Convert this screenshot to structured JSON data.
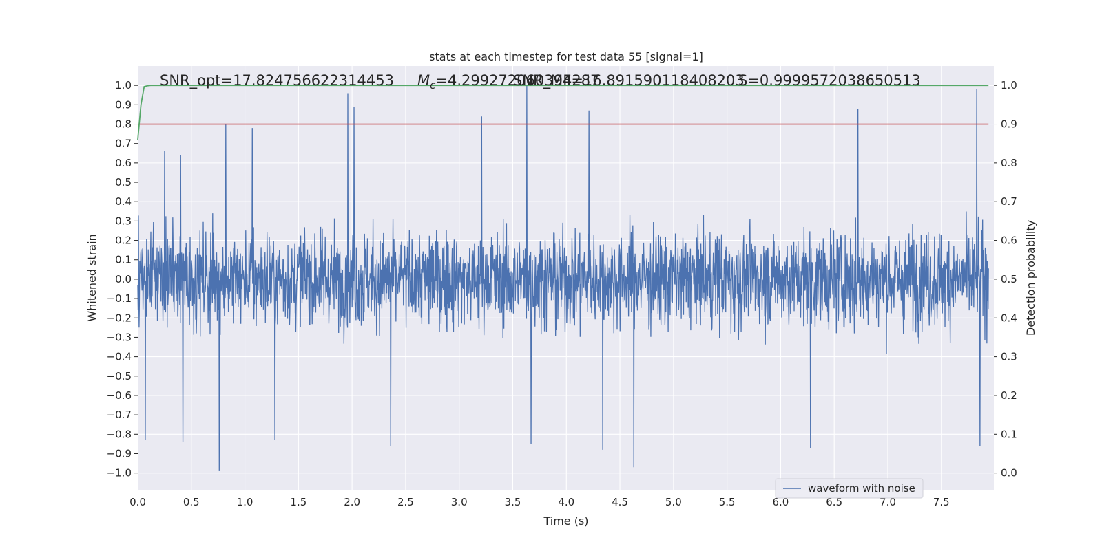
{
  "title": "stats at each timestep for test data 55 [signal=1]",
  "annotations": {
    "snr_opt": "SNR_opt=17.824756622314453",
    "mc": "=4.299272060394287",
    "mc_symbol": "M",
    "mc_subscript": "c",
    "snr_mf": "SNR_MF=16.891590118408203",
    "s": "S=0.9999572038650513"
  },
  "legend": {
    "label": "waveform with noise",
    "placement": "lower-right"
  },
  "colors": {
    "background": "#eaeaf2",
    "grid": "#ffffff",
    "waveform": "#4c72b0",
    "probability": "#55a868",
    "threshold": "#c44e52"
  },
  "chart_data": {
    "type": "line",
    "title": "stats at each timestep for test data 55 [signal=1]",
    "xlabel": "Time (s)",
    "ylabel": "Whitened strain",
    "y2label": "Detection probability",
    "xlim": [
      0.0,
      7.99
    ],
    "ylim": [
      -1.09,
      1.1
    ],
    "y2lim": [
      -0.045,
      1.05
    ],
    "xticks": [
      "0.0",
      "0.5",
      "1.0",
      "1.5",
      "2.0",
      "2.5",
      "3.0",
      "3.5",
      "4.0",
      "4.5",
      "5.0",
      "5.5",
      "6.0",
      "6.5",
      "7.0",
      "7.5"
    ],
    "yticks": [
      "1.0",
      "0.9",
      "0.8",
      "0.7",
      "0.6",
      "0.5",
      "0.4",
      "0.3",
      "0.2",
      "0.1",
      "0.0",
      "−0.1",
      "−0.2",
      "−0.3",
      "−0.4",
      "−0.5",
      "−0.6",
      "−0.7",
      "−0.8",
      "−0.9",
      "−1.0"
    ],
    "y2ticks": [
      "1.0",
      "0.9",
      "0.8",
      "0.7",
      "0.6",
      "0.5",
      "0.4",
      "0.3",
      "0.2",
      "0.1",
      "0.0"
    ],
    "grid": true,
    "series": [
      {
        "name": "waveform with noise",
        "axis": "left",
        "style": "dense noise, envelope approx ±0.4 with spikes",
        "spikes": [
          {
            "t": 0.07,
            "y": -0.83
          },
          {
            "t": 0.25,
            "y": 0.66
          },
          {
            "t": 0.4,
            "y": 0.64
          },
          {
            "t": 0.42,
            "y": -0.84
          },
          {
            "t": 0.76,
            "y": -0.99
          },
          {
            "t": 0.82,
            "y": 0.8
          },
          {
            "t": 1.07,
            "y": 0.78
          },
          {
            "t": 1.28,
            "y": -0.83
          },
          {
            "t": 1.96,
            "y": 0.96
          },
          {
            "t": 2.02,
            "y": 0.89
          },
          {
            "t": 2.36,
            "y": -0.86
          },
          {
            "t": 3.21,
            "y": 0.84
          },
          {
            "t": 3.63,
            "y": 1.0
          },
          {
            "t": 3.67,
            "y": -0.85
          },
          {
            "t": 4.21,
            "y": 0.87
          },
          {
            "t": 4.34,
            "y": -0.88
          },
          {
            "t": 4.63,
            "y": -0.97
          },
          {
            "t": 6.28,
            "y": -0.87
          },
          {
            "t": 6.72,
            "y": 0.88
          },
          {
            "t": 7.83,
            "y": 0.98
          },
          {
            "t": 7.86,
            "y": -0.86
          }
        ]
      },
      {
        "name": "",
        "axis": "right",
        "x": [
          0.0,
          0.03,
          0.06,
          0.09,
          0.12,
          0.3,
          1.0,
          2.0,
          3.0,
          4.0,
          5.0,
          6.0,
          7.0,
          7.94
        ],
        "values": [
          0.86,
          0.95,
          0.997,
          0.999,
          1.0,
          1.0,
          1.0,
          1.0,
          1.0,
          1.0,
          1.0,
          1.0,
          1.0,
          1.0
        ]
      },
      {
        "name": "",
        "axis": "left",
        "x": [
          0.0,
          7.94
        ],
        "values": [
          0.8,
          0.8
        ]
      }
    ]
  }
}
